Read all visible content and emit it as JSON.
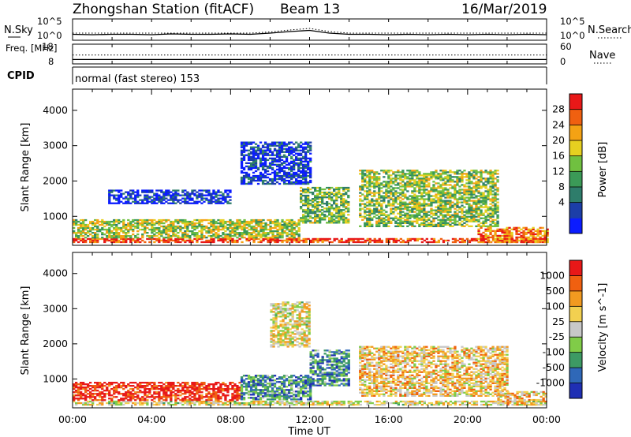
{
  "header": {
    "station": "Zhongshan Station (fitACF)",
    "beam": "Beam 13",
    "date": "16/Mar/2019"
  },
  "chart_data": [
    {
      "type": "line",
      "panel": "noise",
      "left_label": "N.Sky",
      "right_label": "N.Search",
      "left_ticks": [
        "10^5",
        "10^0"
      ],
      "right_ticks": [
        "10^5",
        "10^0"
      ],
      "series": [
        {
          "name": "N.Sky",
          "style": "solid",
          "values": [
            1.3,
            1.2,
            1.3,
            1.3,
            1.2,
            1.4,
            1.3,
            1.3,
            1.4,
            1.3,
            1.6,
            2.0,
            2.3,
            1.6,
            1.3,
            1.3,
            1.2,
            1.3,
            1.2,
            1.3,
            1.2,
            1.3,
            1.2,
            1.3,
            1.2
          ]
        },
        {
          "name": "N.Search",
          "style": "dotted",
          "values": [
            1.6,
            1.6,
            1.6,
            1.6,
            1.6,
            1.6,
            1.6,
            1.6,
            1.6,
            1.6,
            1.9,
            2.4,
            2.8,
            2.0,
            1.6,
            1.6,
            1.6,
            1.6,
            1.6,
            1.6,
            1.6,
            1.6,
            1.6,
            1.6,
            1.6
          ]
        }
      ]
    },
    {
      "type": "line",
      "panel": "frequency",
      "left_label": "Freq. [MHz]",
      "right_label": "Nave",
      "left_ticks": [
        "18",
        "8"
      ],
      "right_ticks": [
        "60",
        "0"
      ],
      "series": [
        {
          "name": "Freq.",
          "style": "solid",
          "values": [
            10,
            10,
            10,
            10,
            10,
            10,
            10,
            10,
            10,
            10,
            10,
            10,
            10,
            10,
            10,
            10,
            10,
            10,
            10,
            10,
            10,
            10,
            10,
            10,
            10
          ]
        },
        {
          "name": "Nave",
          "style": "dotted",
          "values": [
            27,
            27,
            27,
            27,
            27,
            27,
            27,
            27,
            27,
            27,
            27,
            27,
            27,
            27,
            27,
            27,
            27,
            27,
            27,
            27,
            27,
            27,
            27,
            27,
            27
          ]
        }
      ]
    },
    {
      "type": "heatmap",
      "panel": "power",
      "ylabel": "Slant Range [km]",
      "yticks": [
        1000,
        2000,
        3000,
        4000
      ],
      "ylim": [
        180,
        4600
      ],
      "colorbar_label": "Power [dB]",
      "colorbar_ticks": [
        "28",
        "24",
        "20",
        "16",
        "12",
        "8",
        "4"
      ],
      "colorbar_colors": [
        "#0b1cff",
        "#1c3ea8",
        "#2e7d6b",
        "#3b9a57",
        "#70c040",
        "#e6d020",
        "#f4a214",
        "#f06010",
        "#e81818"
      ],
      "regions": [
        {
          "t": [
            0.0,
            24.0
          ],
          "r": [
            250,
            380
          ],
          "level": 0.9
        },
        {
          "t": [
            0.0,
            11.5
          ],
          "r": [
            380,
            900
          ],
          "level": 0.55
        },
        {
          "t": [
            1.8,
            8.0
          ],
          "r": [
            1350,
            1750
          ],
          "level": 0.1
        },
        {
          "t": [
            8.5,
            12.0
          ],
          "r": [
            1900,
            3100
          ],
          "level": 0.12
        },
        {
          "t": [
            11.5,
            14.0
          ],
          "r": [
            800,
            1800
          ],
          "level": 0.45
        },
        {
          "t": [
            14.5,
            21.5
          ],
          "r": [
            700,
            2300
          ],
          "level": 0.5
        },
        {
          "t": [
            20.5,
            24.0
          ],
          "r": [
            250,
            700
          ],
          "level": 0.8
        }
      ]
    },
    {
      "type": "heatmap",
      "panel": "velocity",
      "ylabel": "Slant Range [km]",
      "yticks": [
        1000,
        2000,
        3000,
        4000
      ],
      "ylim": [
        180,
        4600
      ],
      "colorbar_label": "Velocity [m s^-1]",
      "colorbar_ticks": [
        "1000",
        "500",
        "100",
        "25",
        "-25",
        "-100",
        "-500",
        "-1000"
      ],
      "colorbar_colors": [
        "#1f2fb4",
        "#2f68b8",
        "#3d9a64",
        "#80cc48",
        "#c8c8c8",
        "#f2d050",
        "#f29a20",
        "#f06010",
        "#e81818"
      ],
      "regions": [
        {
          "t": [
            0.0,
            24.0
          ],
          "r": [
            250,
            380
          ],
          "level": 0.55
        },
        {
          "t": [
            0.0,
            8.5
          ],
          "r": [
            380,
            900
          ],
          "level": 0.95
        },
        {
          "t": [
            8.5,
            12.0
          ],
          "r": [
            400,
            1100
          ],
          "level": 0.25
        },
        {
          "t": [
            10.0,
            12.0
          ],
          "r": [
            1900,
            3200
          ],
          "level": 0.55
        },
        {
          "t": [
            12.0,
            14.0
          ],
          "r": [
            800,
            1800
          ],
          "level": 0.25
        },
        {
          "t": [
            14.5,
            22.0
          ],
          "r": [
            500,
            1900
          ],
          "level": 0.62
        },
        {
          "t": [
            21.5,
            24.0
          ],
          "r": [
            250,
            650
          ],
          "level": 0.62
        }
      ]
    }
  ],
  "labels": {
    "cpid_label": "CPID",
    "cpid_value": "normal (fast stereo) 153",
    "xlabel": "Time UT",
    "xticks": [
      "00:00",
      "04:00",
      "08:00",
      "12:00",
      "16:00",
      "20:00",
      "00:00"
    ]
  }
}
